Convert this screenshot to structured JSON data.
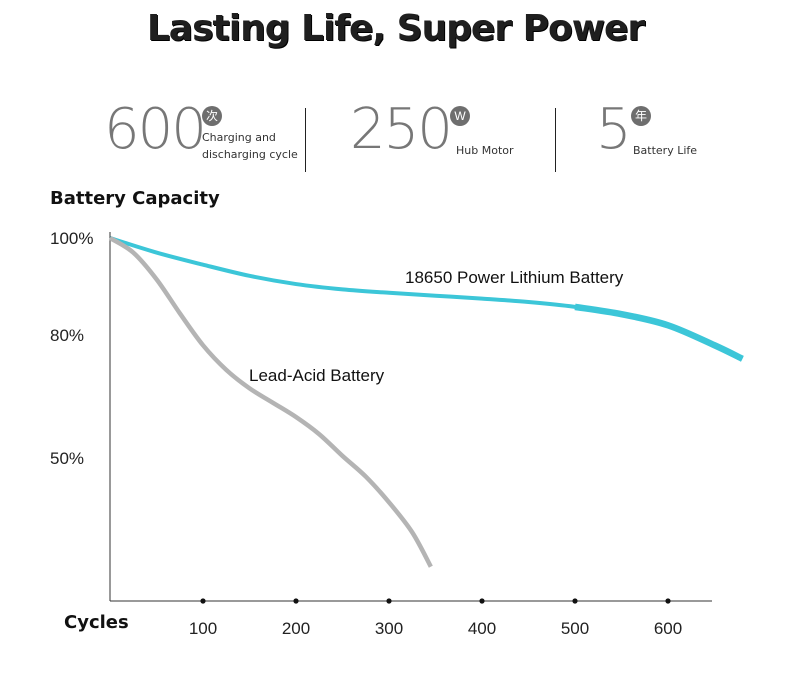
{
  "header": {
    "title": "Lasting Life, Super Power"
  },
  "stats": [
    {
      "value": "600",
      "badge": "次",
      "label_line1": "Charging and",
      "label_line2": "discharging cycle"
    },
    {
      "value": "250",
      "badge": "W",
      "label_line1": "Hub Motor",
      "label_line2": ""
    },
    {
      "value": "5",
      "badge": "年",
      "label_line1": "Battery Life",
      "label_line2": ""
    }
  ],
  "chart_data": {
    "type": "line",
    "title": "Battery Capacity",
    "xlabel": "Cycles",
    "ylabel": "",
    "x_ticks": [
      100,
      200,
      300,
      400,
      500,
      600
    ],
    "y_ticks": [
      {
        "value": 100,
        "label": "100%"
      },
      {
        "value": 80,
        "label": "80%"
      },
      {
        "value": 50,
        "label": "50%"
      }
    ],
    "grid": false,
    "series": [
      {
        "name": "18650 Power Lithium Battery",
        "color": "#3cc6d8",
        "x": [
          0,
          50,
          100,
          150,
          200,
          250,
          300,
          350,
          400,
          450,
          500,
          550,
          600,
          650,
          680
        ],
        "y": [
          100,
          97,
          94.5,
          92.2,
          90.5,
          89.4,
          88.7,
          88.1,
          87.5,
          86.8,
          85.8,
          84.3,
          82,
          77.5,
          74.2
        ]
      },
      {
        "name": "Lead-Acid Battery",
        "color": "#b4b4b4",
        "x": [
          0,
          25,
          50,
          75,
          100,
          125,
          150,
          175,
          200,
          225,
          250,
          275,
          300,
          325,
          345
        ],
        "y": [
          100,
          97,
          91.5,
          84.5,
          77.5,
          71.5,
          67,
          63.5,
          60,
          55.8,
          50.5,
          43.5,
          34.5,
          24,
          12
        ]
      }
    ]
  }
}
